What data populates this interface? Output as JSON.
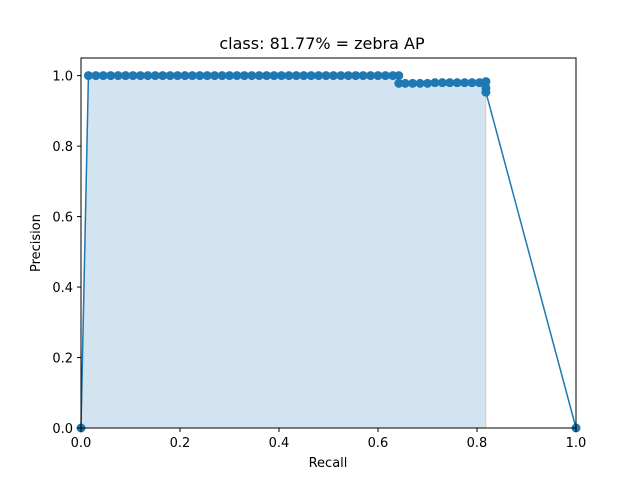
{
  "chart_data": {
    "type": "line",
    "title": "class: 81.77% = zebra AP",
    "xlabel": "Recall",
    "ylabel": "Precision",
    "xlim": [
      0.0,
      1.0
    ],
    "ylim": [
      0.0,
      1.05
    ],
    "xticks": [
      0.0,
      0.2,
      0.4,
      0.6,
      0.8,
      1.0
    ],
    "yticks": [
      0.0,
      0.2,
      0.4,
      0.6,
      0.8,
      1.0
    ],
    "xtick_labels": [
      "0.0",
      "0.2",
      "0.4",
      "0.6",
      "0.8",
      "1.0"
    ],
    "ytick_labels": [
      "0.0",
      "0.2",
      "0.4",
      "0.6",
      "0.8",
      "1.0"
    ],
    "grid": false,
    "colors": {
      "line": "#1f77b4",
      "fill": "#1f77b4",
      "fill_edge": "#d62728"
    },
    "series": [
      {
        "x": [
          0.0,
          0.015,
          0.03,
          0.045,
          0.06,
          0.075,
          0.09,
          0.105,
          0.12,
          0.135,
          0.15,
          0.165,
          0.18,
          0.195,
          0.21,
          0.225,
          0.24,
          0.255,
          0.27,
          0.285,
          0.3,
          0.315,
          0.33,
          0.345,
          0.36,
          0.375,
          0.39,
          0.405,
          0.42,
          0.435,
          0.45,
          0.465,
          0.48,
          0.495,
          0.51,
          0.525,
          0.54,
          0.555,
          0.57,
          0.585,
          0.6,
          0.615,
          0.63,
          0.642,
          0.642,
          0.655,
          0.67,
          0.685,
          0.7,
          0.715,
          0.73,
          0.745,
          0.76,
          0.775,
          0.79,
          0.805,
          0.818,
          0.818,
          0.818,
          1.0
        ],
        "y": [
          0.0,
          1.0,
          1.0,
          1.0,
          1.0,
          1.0,
          1.0,
          1.0,
          1.0,
          1.0,
          1.0,
          1.0,
          1.0,
          1.0,
          1.0,
          1.0,
          1.0,
          1.0,
          1.0,
          1.0,
          1.0,
          1.0,
          1.0,
          1.0,
          1.0,
          1.0,
          1.0,
          1.0,
          1.0,
          1.0,
          1.0,
          1.0,
          1.0,
          1.0,
          1.0,
          1.0,
          1.0,
          1.0,
          1.0,
          1.0,
          1.0,
          1.0,
          1.0,
          1.0,
          0.978,
          0.978,
          0.978,
          0.978,
          0.978,
          0.98,
          0.98,
          0.98,
          0.98,
          0.98,
          0.98,
          0.98,
          0.983,
          0.965,
          0.953,
          0.0
        ]
      }
    ],
    "fill_region": {
      "x": [
        0.0,
        0.015,
        0.642,
        0.642,
        0.818,
        0.818
      ],
      "y": [
        0.0,
        1.0,
        1.0,
        0.978,
        0.978,
        0.0
      ]
    }
  }
}
